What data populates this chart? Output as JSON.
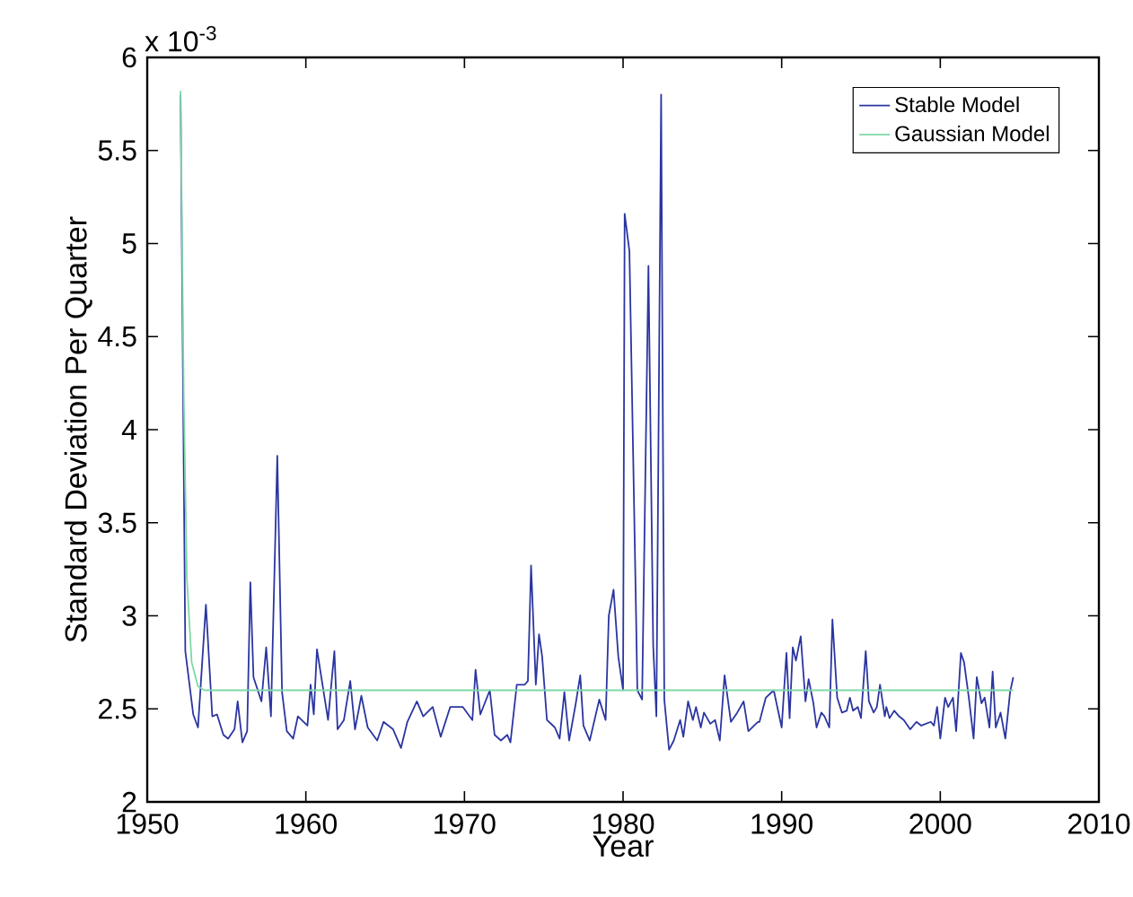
{
  "chart_data": {
    "type": "line",
    "xlabel": "Year",
    "ylabel": "Standard Deviation Per Quarter",
    "annotations": [
      "x 10$^{-3}$"
    ],
    "xlim": [
      1950,
      2010
    ],
    "xticks": [
      1950,
      1960,
      1970,
      1980,
      1990,
      2000,
      2010
    ],
    "ylim": [
      2,
      6
    ],
    "yticks": [
      2,
      2.5,
      3,
      3.5,
      4,
      4.5,
      5,
      5.5,
      6
    ],
    "legend": "top right",
    "marker": "none",
    "line_style": "solid",
    "series": [
      {
        "name": "Stable Model",
        "color": "#2b35a0",
        "x": [
          1952.1,
          1952.4,
          1952.9,
          1953.2,
          1953.7,
          1954.1,
          1954.4,
          1954.8,
          1955.1,
          1955.5,
          1955.7,
          1956.0,
          1956.3,
          1956.5,
          1956.7,
          1957.2,
          1957.5,
          1957.8,
          1958.2,
          1958.5,
          1958.8,
          1959.2,
          1959.5,
          1960.1,
          1960.3,
          1960.5,
          1960.7,
          1961.4,
          1961.8,
          1962.0,
          1962.4,
          1962.8,
          1963.1,
          1963.5,
          1963.9,
          1964.5,
          1964.9,
          1965.5,
          1966.0,
          1966.4,
          1967.0,
          1967.4,
          1968.0,
          1968.5,
          1969.1,
          1969.9,
          1970.5,
          1970.7,
          1971.0,
          1971.6,
          1971.9,
          1972.3,
          1972.7,
          1972.9,
          1973.3,
          1973.8,
          1974.0,
          1974.2,
          1974.5,
          1974.7,
          1974.9,
          1975.2,
          1975.7,
          1976.0,
          1976.3,
          1976.6,
          1977.0,
          1977.3,
          1977.5,
          1977.9,
          1978.5,
          1978.9,
          1979.1,
          1979.4,
          1979.7,
          1980.0,
          1980.1,
          1980.4,
          1980.8,
          1980.9,
          1981.2,
          1981.6,
          1981.9,
          1982.1,
          1982.4,
          1982.6,
          1982.9,
          1983.2,
          1983.6,
          1983.8,
          1984.1,
          1984.4,
          1984.6,
          1984.9,
          1985.1,
          1985.5,
          1985.8,
          1986.1,
          1986.4,
          1986.8,
          1987.2,
          1987.6,
          1987.9,
          1988.5,
          1988.6,
          1989.0,
          1989.5,
          1990.0,
          1990.3,
          1990.5,
          1990.7,
          1990.9,
          1991.2,
          1991.5,
          1991.7,
          1992.0,
          1992.2,
          1992.5,
          1992.7,
          1993.0,
          1993.2,
          1993.5,
          1993.8,
          1994.1,
          1994.3,
          1994.5,
          1994.8,
          1995.0,
          1995.3,
          1995.5,
          1995.8,
          1996.0,
          1996.2,
          1996.5,
          1996.6,
          1996.8,
          1997.1,
          1997.4,
          1997.7,
          1998.1,
          1998.5,
          1998.8,
          1999.4,
          1999.6,
          1999.8,
          2000.0,
          2000.3,
          2000.5,
          2000.8,
          2001.0,
          2001.3,
          2001.5,
          2001.8,
          2002.1,
          2002.3,
          2002.6,
          2002.8,
          2003.1,
          2003.3,
          2003.5,
          2003.8,
          2004.1,
          2004.4,
          2004.6
        ],
        "values": [
          5.8,
          2.81,
          2.47,
          2.4,
          3.06,
          2.46,
          2.47,
          2.36,
          2.34,
          2.39,
          2.54,
          2.32,
          2.38,
          3.18,
          2.67,
          2.54,
          2.83,
          2.46,
          3.86,
          2.59,
          2.38,
          2.34,
          2.46,
          2.41,
          2.63,
          2.47,
          2.82,
          2.44,
          2.81,
          2.39,
          2.44,
          2.65,
          2.39,
          2.57,
          2.4,
          2.33,
          2.43,
          2.39,
          2.29,
          2.43,
          2.54,
          2.46,
          2.51,
          2.35,
          2.51,
          2.51,
          2.44,
          2.71,
          2.47,
          2.6,
          2.36,
          2.33,
          2.36,
          2.32,
          2.63,
          2.63,
          2.65,
          3.27,
          2.63,
          2.9,
          2.78,
          2.44,
          2.4,
          2.34,
          2.59,
          2.33,
          2.52,
          2.68,
          2.41,
          2.33,
          2.55,
          2.44,
          3.0,
          3.14,
          2.78,
          2.6,
          5.16,
          4.96,
          3.1,
          2.6,
          2.55,
          4.88,
          2.84,
          2.46,
          5.8,
          2.55,
          2.28,
          2.33,
          2.44,
          2.35,
          2.54,
          2.44,
          2.51,
          2.4,
          2.48,
          2.42,
          2.44,
          2.33,
          2.68,
          2.43,
          2.48,
          2.54,
          2.38,
          2.43,
          2.43,
          2.56,
          2.6,
          2.4,
          2.8,
          2.45,
          2.83,
          2.76,
          2.89,
          2.54,
          2.66,
          2.53,
          2.4,
          2.48,
          2.46,
          2.4,
          2.98,
          2.56,
          2.48,
          2.49,
          2.56,
          2.49,
          2.51,
          2.45,
          2.81,
          2.54,
          2.48,
          2.51,
          2.63,
          2.46,
          2.51,
          2.45,
          2.49,
          2.46,
          2.44,
          2.39,
          2.43,
          2.41,
          2.43,
          2.41,
          2.51,
          2.34,
          2.56,
          2.51,
          2.56,
          2.38,
          2.8,
          2.75,
          2.56,
          2.34,
          2.67,
          2.53,
          2.56,
          2.4,
          2.7,
          2.4,
          2.48,
          2.34,
          2.59,
          2.67
        ]
      },
      {
        "name": "Gaussian Model",
        "color": "#7fd8a8",
        "x": [
          1952.1,
          1952.3,
          1952.5,
          1952.8,
          1953.2,
          1953.6,
          2004.6
        ],
        "values": [
          5.82,
          4.2,
          3.2,
          2.75,
          2.62,
          2.6,
          2.6
        ]
      }
    ]
  }
}
